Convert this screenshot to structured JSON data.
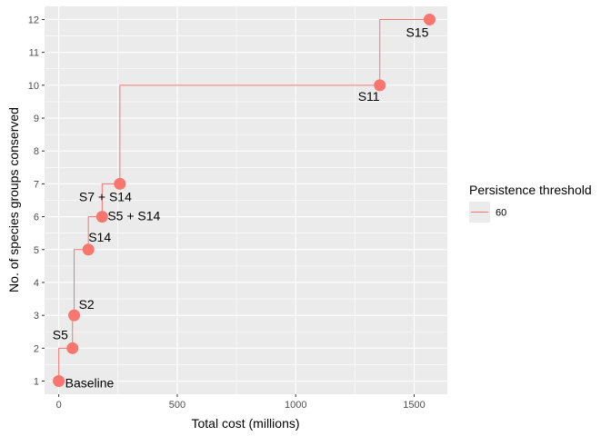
{
  "chart_data": {
    "type": "step-line-scatter",
    "xlabel": "Total cost (millions)",
    "ylabel": "No. of species groups conserved",
    "xlim": [
      -60,
      1640
    ],
    "ylim": [
      0.6,
      12.4
    ],
    "x_ticks": [
      0,
      500,
      1000,
      1500
    ],
    "y_ticks": [
      1,
      2,
      3,
      4,
      5,
      6,
      7,
      8,
      9,
      10,
      11,
      12
    ],
    "grid": true,
    "legend": {
      "title": "Persistence threshold",
      "placement": "right",
      "entries": [
        "60"
      ]
    },
    "color": "#F8766D",
    "panel_background": "#EBEBEB",
    "points": [
      {
        "label": "Baseline",
        "x": 0,
        "y": 1
      },
      {
        "label": "S5",
        "x": 58,
        "y": 2
      },
      {
        "label": "S2",
        "x": 65,
        "y": 3
      },
      {
        "label": "S14",
        "x": 125,
        "y": 5
      },
      {
        "label": "S5 + S14",
        "x": 183,
        "y": 6
      },
      {
        "label": "S7 + S14",
        "x": 258,
        "y": 7
      },
      {
        "label": "S11",
        "x": 1355,
        "y": 10
      },
      {
        "label": "S15",
        "x": 1565,
        "y": 12
      }
    ]
  }
}
